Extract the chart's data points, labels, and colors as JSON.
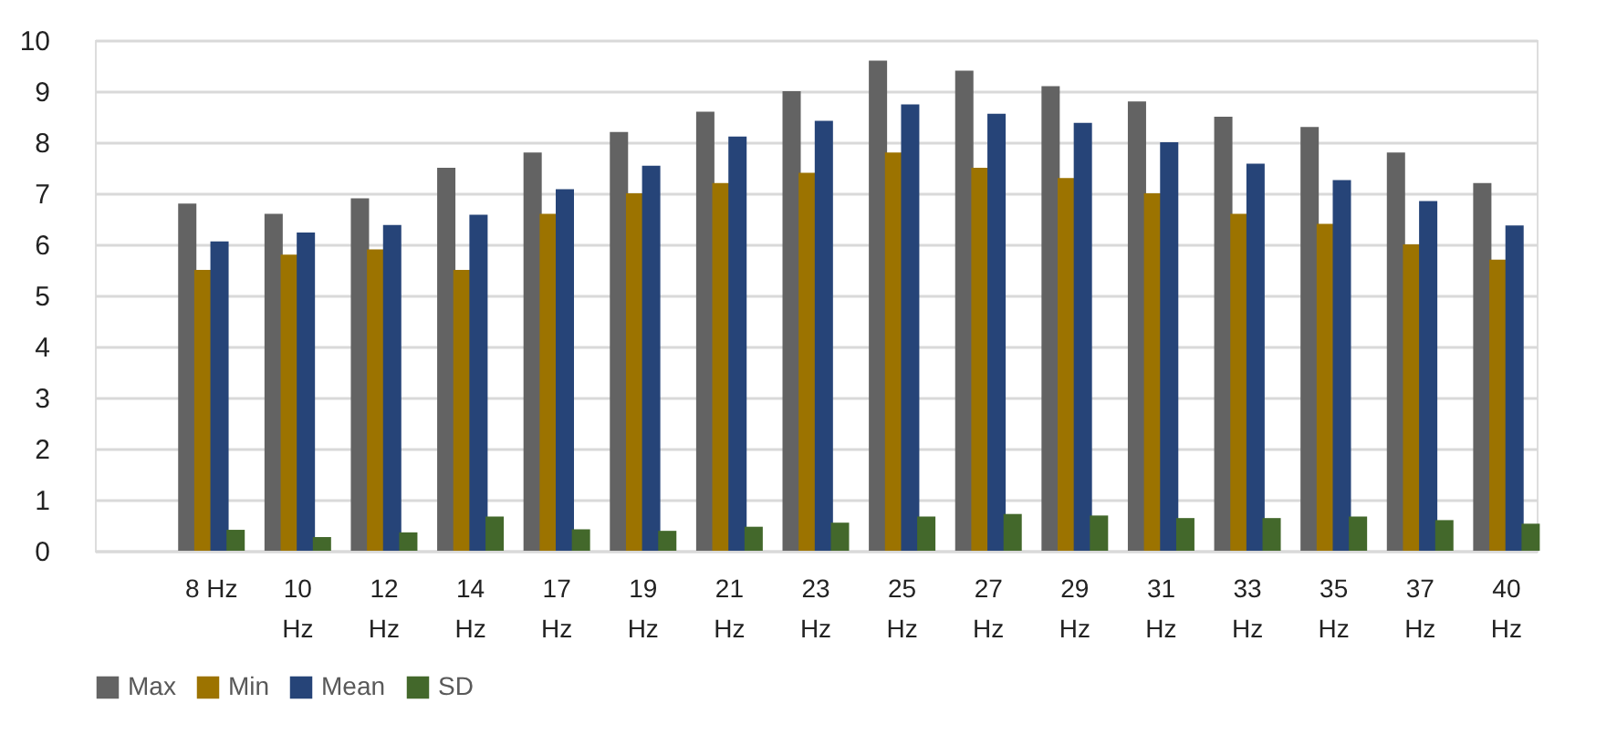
{
  "chart_data": {
    "type": "bar",
    "categories": [
      null,
      "8 Hz",
      "10 Hz",
      "12 Hz",
      "14 Hz",
      "17 Hz",
      "19 Hz",
      "21 Hz",
      "23 Hz",
      "25 Hz",
      "27 Hz",
      "29 Hz",
      "31 Hz",
      "33 Hz",
      "35 Hz",
      "37 Hz",
      "40 Hz"
    ],
    "series": [
      {
        "name": "Max",
        "color": "#636363",
        "values": [
          null,
          6.8,
          6.6,
          6.9,
          7.5,
          7.8,
          8.2,
          8.6,
          9.0,
          9.6,
          9.4,
          9.1,
          8.8,
          8.5,
          8.3,
          7.8,
          7.2
        ]
      },
      {
        "name": "Min",
        "color": "#9c7300",
        "values": [
          null,
          5.5,
          5.8,
          5.9,
          5.5,
          6.6,
          7.0,
          7.2,
          7.4,
          7.8,
          7.5,
          7.3,
          7.0,
          6.6,
          6.4,
          6.0,
          5.7
        ]
      },
      {
        "name": "Mean",
        "color": "#264478",
        "values": [
          null,
          6.06,
          6.23,
          6.38,
          6.58,
          7.08,
          7.54,
          8.11,
          8.42,
          8.74,
          8.56,
          8.38,
          8.0,
          7.58,
          7.26,
          6.85,
          6.37
        ]
      },
      {
        "name": "SD",
        "color": "#43682b",
        "values": [
          null,
          0.41,
          0.27,
          0.36,
          0.67,
          0.42,
          0.39,
          0.47,
          0.55,
          0.67,
          0.72,
          0.69,
          0.64,
          0.64,
          0.67,
          0.6,
          0.53
        ]
      }
    ],
    "ylim": [
      0,
      10
    ],
    "yticks": [
      0,
      1,
      2,
      3,
      4,
      5,
      6,
      7,
      8,
      9,
      10
    ],
    "grid": "y",
    "legend": "bottom"
  }
}
